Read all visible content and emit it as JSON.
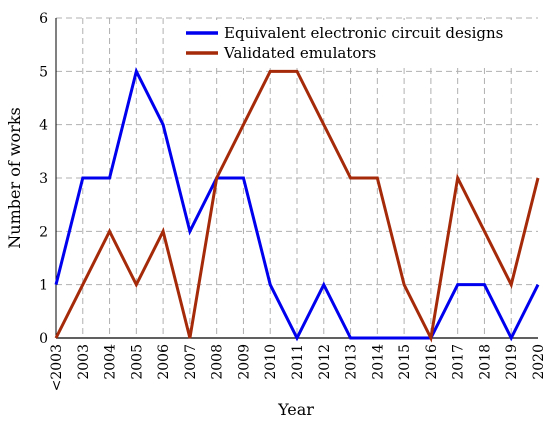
{
  "chart_data": {
    "type": "line",
    "title": "",
    "xlabel": "Year",
    "ylabel": "Number of works",
    "categories": [
      "<2003",
      "2003",
      "2004",
      "2005",
      "2006",
      "2007",
      "2008",
      "2009",
      "2010",
      "2011",
      "2012",
      "2013",
      "2014",
      "2015",
      "2016",
      "2017",
      "2018",
      "2019",
      "2020"
    ],
    "ylim": [
      0,
      6
    ],
    "yticks": [
      0,
      1,
      2,
      3,
      4,
      5,
      6
    ],
    "grid": true,
    "legend_position": "top-right",
    "series": [
      {
        "name": "Equivalent electronic circuit designs",
        "color": "#0000ee",
        "values": [
          1,
          3,
          3,
          5,
          4,
          2,
          3,
          3,
          1,
          0,
          1,
          0,
          0,
          0,
          0,
          1,
          1,
          0,
          1
        ]
      },
      {
        "name": "Validated emulators",
        "color": "#a52a0a",
        "values": [
          0,
          1,
          2,
          1,
          2,
          0,
          3,
          4,
          5,
          5,
          4,
          3,
          3,
          1,
          0,
          3,
          2,
          1,
          3
        ]
      }
    ]
  }
}
